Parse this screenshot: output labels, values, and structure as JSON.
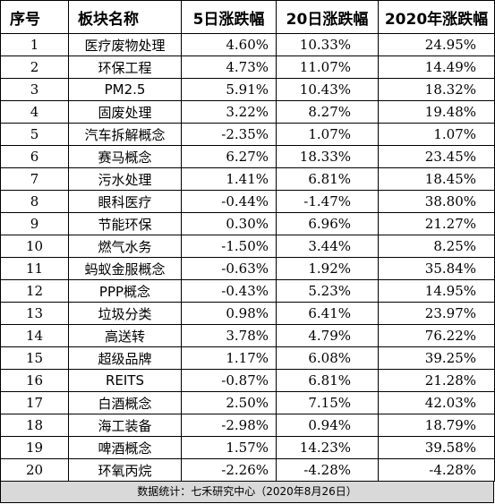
{
  "headers": [
    "序号",
    "板块名称",
    "5日涨跌幅",
    "20日涨跌幅",
    "2020年涨跌幅"
  ],
  "rows": [
    [
      "1",
      "医疗废物处理",
      "4.60%",
      "10.33%",
      "24.95%"
    ],
    [
      "2",
      "环保工程",
      "4.73%",
      "11.07%",
      "14.49%"
    ],
    [
      "3",
      "PM2.5",
      "5.91%",
      "10.43%",
      "18.32%"
    ],
    [
      "4",
      "固废处理",
      "3.22%",
      "8.27%",
      "19.48%"
    ],
    [
      "5",
      "汽车拆解概念",
      "-2.35%",
      "1.07%",
      "1.07%"
    ],
    [
      "6",
      "赛马概念",
      "6.27%",
      "18.33%",
      "23.45%"
    ],
    [
      "7",
      "污水处理",
      "1.41%",
      "6.81%",
      "18.45%"
    ],
    [
      "8",
      "眼科医疗",
      "-0.44%",
      "-1.47%",
      "38.80%"
    ],
    [
      "9",
      "节能环保",
      "0.30%",
      "6.96%",
      "21.27%"
    ],
    [
      "10",
      "燃气水务",
      "-1.50%",
      "3.44%",
      "8.25%"
    ],
    [
      "11",
      "蚂蚁金服概念",
      "-0.63%",
      "1.92%",
      "35.84%"
    ],
    [
      "12",
      "PPP概念",
      "-0.43%",
      "5.23%",
      "14.95%"
    ],
    [
      "13",
      "垃圾分类",
      "0.98%",
      "6.41%",
      "23.97%"
    ],
    [
      "14",
      "高送转",
      "3.78%",
      "4.79%",
      "76.22%"
    ],
    [
      "15",
      "超级品牌",
      "1.17%",
      "6.08%",
      "39.25%"
    ],
    [
      "16",
      "REITS",
      "-0.87%",
      "6.81%",
      "21.28%"
    ],
    [
      "17",
      "白酒概念",
      "2.50%",
      "7.15%",
      "42.03%"
    ],
    [
      "18",
      "海工装备",
      "-2.98%",
      "0.94%",
      "18.79%"
    ],
    [
      "19",
      "啤酒概念",
      "1.57%",
      "14.23%",
      "39.58%"
    ],
    [
      "20",
      "环氧丙烷",
      "-2.26%",
      "-4.28%",
      "-4.28%"
    ]
  ],
  "footer": "数据统计：七禾研究中心（2020年8月26日）"
}
